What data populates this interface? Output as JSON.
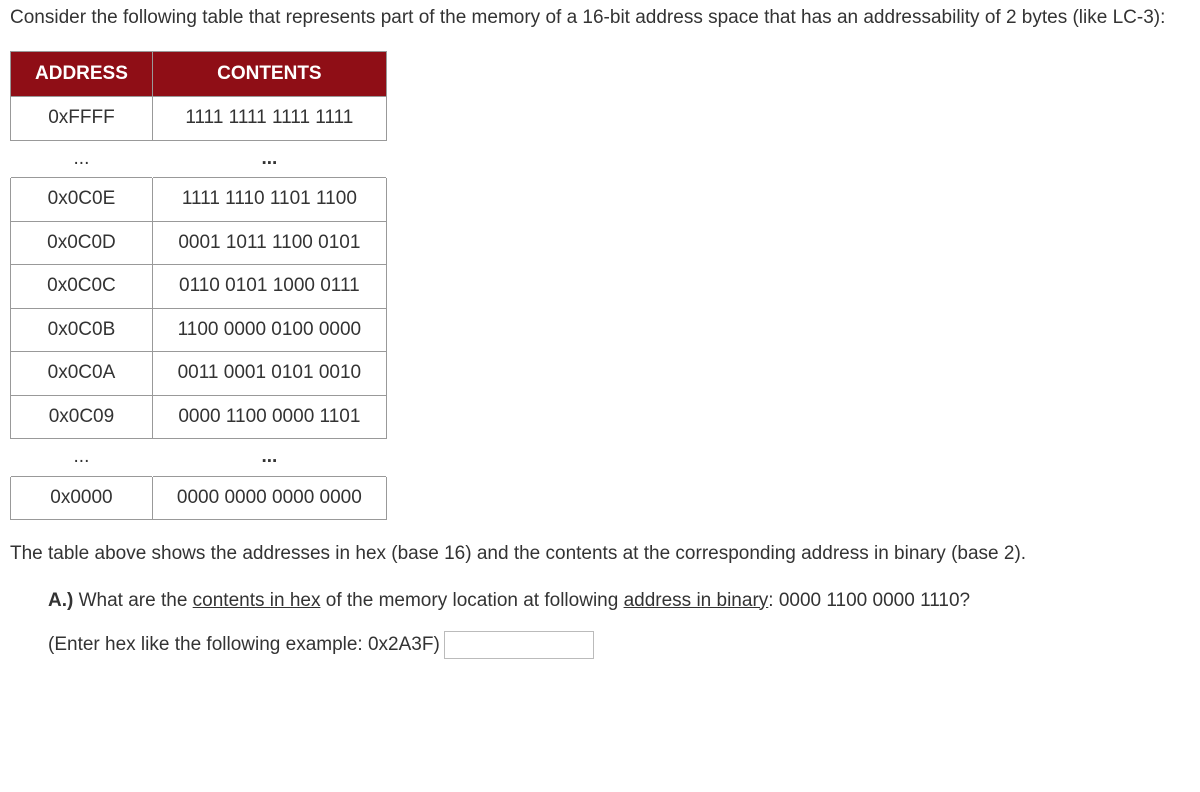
{
  "intro": "Consider the following table that represents part of the memory of a 16-bit address space that has an addressability of 2 bytes (like LC-3):",
  "table": {
    "header_bg": "#8f0e16",
    "header_fg": "#ffffff",
    "columns": [
      "ADDRESS",
      "CONTENTS"
    ],
    "rows": [
      {
        "addr": "0xFFFF",
        "contents": "1111 1111 1111 1111"
      },
      {
        "gap": true,
        "addr": "...",
        "contents": "..."
      },
      {
        "addr": "0x0C0E",
        "contents": "1111 1110 1101 1100"
      },
      {
        "addr": "0x0C0D",
        "contents": "0001 1011 1100 0101"
      },
      {
        "addr": "0x0C0C",
        "contents": "0110 0101 1000 0111"
      },
      {
        "addr": "0x0C0B",
        "contents": "1100 0000 0100 0000"
      },
      {
        "addr": "0x0C0A",
        "contents": "0011 0001 0101 0010"
      },
      {
        "addr": "0x0C09",
        "contents": "0000 1100 0000 1101"
      },
      {
        "gap": true,
        "addr": "...",
        "contents": "..."
      },
      {
        "addr": "0x0000",
        "contents": "0000 0000 0000 0000"
      }
    ]
  },
  "desc": "The table above shows the addresses in hex (base 16) and the contents at the corresponding address in binary (base 2).",
  "question": {
    "label": "A.)",
    "pre1": " What are the ",
    "u1": "contents in hex",
    "mid": " of the memory location at following ",
    "u2": "address in binary",
    "post": ": 0000 1100 0000 1110?"
  },
  "hint": "(Enter hex like the following example: 0x2A3F)",
  "input_placeholder": ""
}
